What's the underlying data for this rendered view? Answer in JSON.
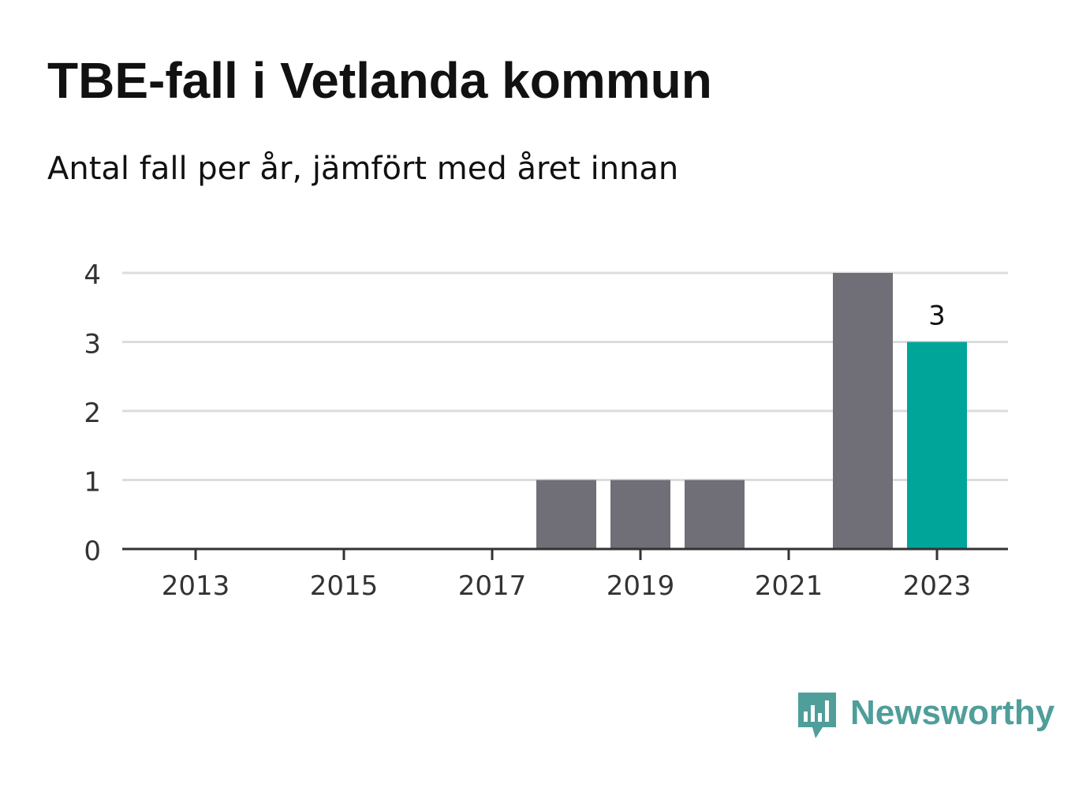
{
  "header": {
    "title": "TBE-fall i Vetlanda kommun",
    "subtitle": "Antal fall per år, jämfört med året innan"
  },
  "chart_data": {
    "type": "bar",
    "categories": [
      "2013",
      "2014",
      "2015",
      "2016",
      "2017",
      "2018",
      "2019",
      "2020",
      "2021",
      "2022",
      "2023"
    ],
    "values": [
      0,
      0,
      0,
      0,
      0,
      1,
      1,
      1,
      0,
      4,
      3
    ],
    "x_tick_labels": [
      "2013",
      "2015",
      "2017",
      "2019",
      "2021",
      "2023"
    ],
    "y_tick_labels": [
      "0",
      "1",
      "2",
      "3",
      "4"
    ],
    "ylim": [
      0,
      4
    ],
    "grid": true,
    "highlight_category": "2023",
    "data_labels": [
      {
        "category": "2023",
        "text": "3"
      }
    ],
    "colors": {
      "bar": "#706f77",
      "highlight": "#00a59a",
      "grid": "#dcdcdc",
      "axis": "#333333",
      "tick_text": "#333333",
      "label_text": "#111111"
    }
  },
  "branding": {
    "name": "Newsworthy",
    "logo_icon": "newsworthy-chat-bar-icon",
    "color": "#4f9e9a"
  }
}
